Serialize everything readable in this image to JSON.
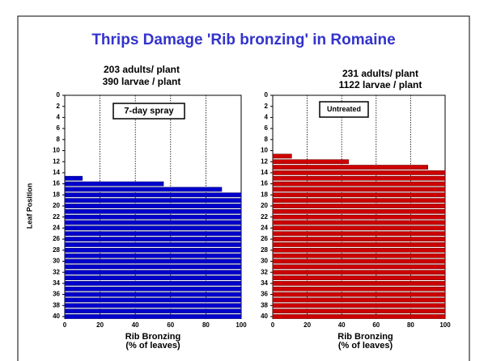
{
  "title": "Thrips Damage 'Rib bronzing' in Romaine",
  "chart_data": [
    {
      "type": "bar",
      "orientation": "horizontal",
      "color": "#0000cc",
      "annotations": [
        "203   adults/ plant",
        "390   larvae / plant"
      ],
      "label": "7-day spray",
      "y_label": "Leaf Position",
      "x_label": [
        "Rib Bronzing",
        "(% of leaves)"
      ],
      "y": [
        15,
        16,
        17,
        18,
        19,
        20,
        21,
        22,
        23,
        24,
        25,
        26,
        27,
        28,
        29,
        30,
        31,
        32,
        33,
        34,
        35,
        36,
        37,
        38,
        39,
        40
      ],
      "values": [
        10,
        56,
        89,
        100,
        100,
        100,
        100,
        100,
        100,
        100,
        100,
        100,
        100,
        100,
        100,
        100,
        100,
        100,
        100,
        100,
        100,
        100,
        100,
        100,
        100,
        100
      ],
      "xlim": [
        0,
        100
      ],
      "xticks": [
        0,
        20,
        40,
        60,
        80,
        100
      ],
      "ylim": [
        0,
        40
      ],
      "yticks": [
        0,
        2,
        4,
        6,
        8,
        10,
        12,
        14,
        16,
        18,
        20,
        22,
        24,
        26,
        28,
        30,
        32,
        34,
        36,
        38,
        40
      ],
      "grid": true
    },
    {
      "type": "bar",
      "orientation": "horizontal",
      "color": "#cc0000",
      "annotations": [
        "231   adults/ plant",
        "1122   larvae / plant"
      ],
      "label": "Untreated",
      "x_label": [
        "Rib Bronzing",
        "(% of leaves)"
      ],
      "y": [
        11,
        12,
        13,
        14,
        15,
        16,
        17,
        18,
        19,
        20,
        21,
        22,
        23,
        24,
        25,
        26,
        27,
        28,
        29,
        30,
        31,
        32,
        33,
        34,
        35,
        36,
        37,
        38,
        39,
        40
      ],
      "values": [
        11,
        44,
        90,
        100,
        100,
        100,
        100,
        100,
        100,
        100,
        100,
        100,
        100,
        100,
        100,
        100,
        100,
        100,
        100,
        100,
        100,
        100,
        100,
        100,
        100,
        100,
        100,
        100,
        100,
        100
      ],
      "xlim": [
        0,
        100
      ],
      "xticks": [
        0,
        20,
        40,
        60,
        80,
        100
      ],
      "ylim": [
        0,
        40
      ],
      "yticks": [
        0,
        2,
        4,
        6,
        8,
        10,
        12,
        14,
        16,
        18,
        20,
        22,
        24,
        26,
        28,
        30,
        32,
        34,
        36,
        38,
        40
      ],
      "grid": true
    }
  ]
}
